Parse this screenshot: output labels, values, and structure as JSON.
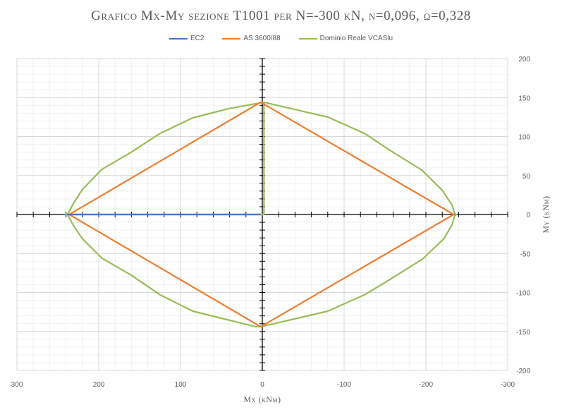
{
  "chart_data": {
    "type": "line",
    "title": "Grafico Mx-My sezione T1001 per N=-300 kN, ν=0,096, ω=0,328",
    "xlabel": "Mx (kNm)",
    "ylabel": "My (kNm)",
    "xlim": [
      300,
      -300
    ],
    "ylim": [
      -200,
      200
    ],
    "x_ticks": [
      300,
      200,
      100,
      0,
      -100,
      -200,
      -300
    ],
    "x_tick_labels": [
      "300",
      "200",
      "100",
      "0",
      "-100",
      "-200",
      "-300"
    ],
    "y_ticks": [
      200,
      150,
      100,
      50,
      0,
      -50,
      -100,
      -150,
      -200
    ],
    "y_tick_labels": [
      "200",
      "150",
      "100",
      "50",
      "0",
      "-50",
      "-100",
      "-150",
      "-200"
    ],
    "grid": true,
    "legend_position": "top",
    "series": [
      {
        "name": "EC2",
        "color": "#4472C4",
        "points": [
          [
            236,
            0
          ],
          [
            230,
            0
          ],
          [
            200,
            0
          ],
          [
            150,
            0
          ],
          [
            100,
            0
          ],
          [
            50,
            0
          ],
          [
            2,
            0
          ]
        ]
      },
      {
        "name": "AS 3600/88",
        "color": "#ED7D31",
        "points": [
          [
            236,
            0
          ],
          [
            2,
            144
          ],
          [
            -234,
            0
          ],
          [
            2,
            -144
          ],
          [
            236,
            0
          ]
        ]
      },
      {
        "name": "Dominio Reale VCASlu",
        "color": "#9BBB59",
        "points": [
          [
            236,
            0
          ],
          [
            2,
            0
          ],
          [
            -2,
            0
          ],
          [
            -2,
            144
          ],
          [
            -80,
            125
          ],
          [
            -125,
            104
          ],
          [
            -155,
            83
          ],
          [
            -195,
            57
          ],
          [
            -220,
            31
          ],
          [
            -232,
            12
          ],
          [
            -235,
            2
          ],
          [
            -237,
            0
          ],
          [
            -235,
            -2
          ],
          [
            -232,
            -13
          ],
          [
            -222,
            -31
          ],
          [
            -196,
            -57
          ],
          [
            -155,
            -84
          ],
          [
            -125,
            -103
          ],
          [
            -80,
            -124
          ],
          [
            -2,
            -143
          ],
          [
            8,
            -144
          ],
          [
            85,
            -124
          ],
          [
            125,
            -103
          ],
          [
            160,
            -78
          ],
          [
            196,
            -56
          ],
          [
            220,
            -31
          ],
          [
            231,
            -14
          ],
          [
            237,
            -2
          ],
          [
            240,
            0
          ],
          [
            237,
            2
          ],
          [
            231,
            14
          ],
          [
            220,
            32
          ],
          [
            196,
            58
          ],
          [
            160,
            80
          ],
          [
            125,
            104
          ],
          [
            85,
            124
          ],
          [
            40,
            136
          ],
          [
            -2,
            144
          ]
        ]
      }
    ]
  }
}
